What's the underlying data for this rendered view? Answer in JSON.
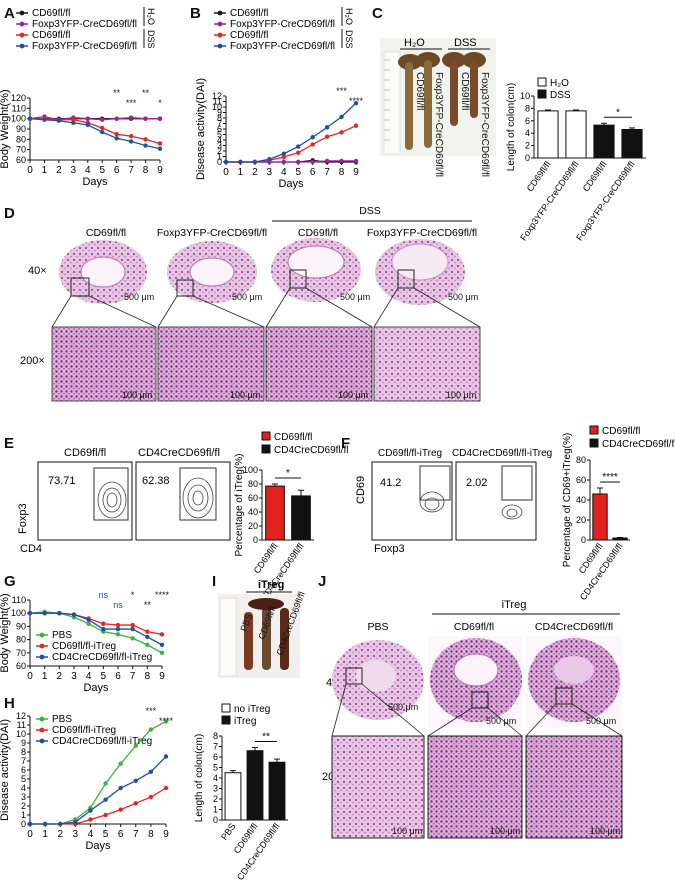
{
  "colors": {
    "black": "#1a1a1a",
    "purple": "#a020a0",
    "red": "#e8251f",
    "blue": "#1f4fa8",
    "green": "#3cb43c",
    "tissue": "#e7c3e3",
    "tissue_dark": "#b65fae",
    "bar_white": "#ffffff",
    "bar_black": "#111111",
    "bar_red": "#e0211d"
  },
  "panel_letters": [
    "A",
    "B",
    "C",
    "D",
    "E",
    "F",
    "G",
    "H",
    "I",
    "J"
  ],
  "chart_data": [
    {
      "id": "A",
      "type": "line",
      "xlabel": "Days",
      "ylabel": "Body Weight(%)",
      "ylim": [
        60,
        120
      ],
      "yticks": [
        60,
        70,
        80,
        90,
        100,
        110,
        120
      ],
      "x": [
        0,
        1,
        2,
        3,
        4,
        5,
        6,
        7,
        8,
        9
      ],
      "legend": [
        "CD69fl/fl",
        "Foxp3YFP-CreCD69fl/fl",
        "CD69fl/fl",
        "Foxp3YFP-CreCD69fl/fl"
      ],
      "group_labels": [
        "H₂O",
        "DSS"
      ],
      "series": [
        {
          "name": "CD69fl/fl",
          "color": "black",
          "values": [
            100,
            100,
            100,
            100,
            100,
            100,
            100,
            100,
            100,
            100
          ]
        },
        {
          "name": "Foxp3YFP-CreCD69fl/fl",
          "color": "purple",
          "values": [
            100,
            102,
            99,
            101,
            100,
            99,
            100,
            101,
            100,
            100
          ]
        },
        {
          "name": "CD69fl/fl",
          "color": "red",
          "values": [
            100,
            100,
            99,
            99,
            96,
            91,
            85,
            83,
            80,
            76
          ]
        },
        {
          "name": "Foxp3YFP-CreCD69fl/fl",
          "color": "blue",
          "values": [
            100,
            99,
            98,
            96,
            94,
            87,
            81,
            78,
            74,
            71
          ]
        }
      ],
      "annotations": [
        "**",
        "***",
        "**",
        "*"
      ]
    },
    {
      "id": "B",
      "type": "line",
      "xlabel": "Days",
      "ylabel": "Disease activity(DAI)",
      "ylim": [
        0,
        12
      ],
      "yticks": [
        0,
        1,
        2,
        3,
        4,
        5,
        6,
        7,
        8,
        9,
        10,
        11,
        12
      ],
      "x": [
        0,
        1,
        2,
        3,
        4,
        5,
        6,
        7,
        8,
        9
      ],
      "legend": [
        "CD69fl/fl",
        "Foxp3YFP-CreCD69fl/fl",
        "CD69fl/fl",
        "Foxp3YFP-CreCD69fl/fl"
      ],
      "group_labels": [
        "H₂O",
        "DSS"
      ],
      "series": [
        {
          "name": "CD69fl/fl",
          "color": "black",
          "values": [
            0,
            0,
            0,
            0,
            0,
            0,
            0.3,
            0,
            0,
            0
          ]
        },
        {
          "name": "Foxp3YFP-CreCD69fl/fl",
          "color": "purple",
          "values": [
            0,
            0,
            0,
            0,
            0,
            0,
            0,
            0.2,
            0.2,
            0.2
          ]
        },
        {
          "name": "CD69fl/fl",
          "color": "red",
          "values": [
            0,
            0,
            0,
            0.3,
            0.9,
            1.7,
            3.2,
            4.6,
            5.4,
            6.6
          ]
        },
        {
          "name": "Foxp3YFP-CreCD69fl/fl",
          "color": "blue",
          "values": [
            0,
            0,
            0,
            0.5,
            1.5,
            2.8,
            4.5,
            6.3,
            8.2,
            10.7
          ]
        }
      ],
      "annotations": [
        "***",
        "****"
      ]
    },
    {
      "id": "C",
      "type": "bar",
      "ylabel": "Length of colon(cm)",
      "ylim": [
        0,
        10
      ],
      "yticks": [
        0,
        2,
        4,
        6,
        8,
        10
      ],
      "categories": [
        "CD69fl/fl",
        "Foxp3YFP-CreCD69fl/fl",
        "CD69fl/fl",
        "Foxp3YFP-CreCD69fl/fl"
      ],
      "legend": [
        "H₂O",
        "DSS"
      ],
      "values": [
        7.6,
        7.6,
        5.3,
        4.6
      ],
      "errors": [
        0.15,
        0.15,
        0.3,
        0.25
      ],
      "fills": [
        "white",
        "white",
        "black",
        "black"
      ],
      "annotations": [
        "*"
      ]
    },
    {
      "id": "E",
      "type": "bar",
      "ylabel": "Percentage of iTreg(%)",
      "ylim": [
        0,
        100
      ],
      "yticks": [
        0,
        20,
        40,
        60,
        80,
        100
      ],
      "categories": [
        "CD69fl/fl",
        "CD4CreCD69fl/fl"
      ],
      "legend": [
        "CD69fl/fl",
        "CD4CreCD69fl/fl"
      ],
      "values": [
        77,
        63
      ],
      "errors": [
        3,
        8
      ],
      "fills": [
        "red",
        "black"
      ],
      "annotations": [
        "*"
      ]
    },
    {
      "id": "F",
      "type": "bar",
      "ylabel": "Percentage of CD69+iTreg(%)",
      "ylim": [
        0,
        80
      ],
      "yticks": [
        0,
        20,
        40,
        60,
        80
      ],
      "categories": [
        "CD69fl/fl",
        "CD4CreCD69fl/fl"
      ],
      "legend": [
        "CD69fl/fl",
        "CD4CreCD69fl/fl"
      ],
      "values": [
        46,
        2
      ],
      "errors": [
        6,
        0.5
      ],
      "fills": [
        "red",
        "black"
      ],
      "annotations": [
        "****"
      ]
    },
    {
      "id": "G",
      "type": "line",
      "xlabel": "Days",
      "ylabel": "Body Weight(%)",
      "ylim": [
        60,
        110
      ],
      "yticks": [
        60,
        70,
        80,
        90,
        100,
        110
      ],
      "x": [
        0,
        1,
        2,
        3,
        4,
        5,
        6,
        7,
        8,
        9
      ],
      "legend": [
        "PBS",
        "CD69fl/fl-iTreg",
        "CD4CreCD69fl/fl-iTreg"
      ],
      "series": [
        {
          "name": "PBS",
          "color": "green",
          "values": [
            100,
            101,
            100,
            97,
            92,
            86,
            84,
            81,
            76,
            70
          ]
        },
        {
          "name": "CD69fl/fl-iTreg",
          "color": "red",
          "values": [
            100,
            100,
            100,
            99,
            96,
            92,
            91,
            91,
            86,
            84
          ]
        },
        {
          "name": "CD4CreCD69fl/fl-iTreg",
          "color": "blue",
          "values": [
            100,
            100,
            100,
            99,
            95,
            88,
            88,
            88,
            82,
            76
          ]
        }
      ],
      "annotations": [
        "ns",
        "ns",
        "*",
        "**",
        "****"
      ]
    },
    {
      "id": "H",
      "type": "line",
      "xlabel": "Days",
      "ylabel": "Disease activity(DAI)",
      "ylim": [
        0,
        12
      ],
      "yticks": [
        0,
        1,
        2,
        3,
        4,
        5,
        6,
        7,
        8,
        9,
        10,
        11,
        12
      ],
      "x": [
        0,
        1,
        2,
        3,
        4,
        5,
        6,
        7,
        8,
        9
      ],
      "legend": [
        "PBS",
        "CD69fl/fl-iTreg",
        "CD4CreCD69fl/fl-iTreg"
      ],
      "series": [
        {
          "name": "PBS",
          "color": "green",
          "values": [
            0,
            0,
            0,
            0.5,
            1.8,
            4.5,
            6.7,
            8.7,
            10.5,
            11.4
          ]
        },
        {
          "name": "CD69fl/fl-iTreg",
          "color": "red",
          "values": [
            0,
            0,
            0,
            0,
            0.5,
            1.0,
            1.6,
            2.3,
            3.0,
            4.0
          ]
        },
        {
          "name": "CD4CreCD69fl/fl-iTreg",
          "color": "blue",
          "values": [
            0,
            0,
            0,
            0.2,
            1.5,
            2.7,
            4.0,
            4.8,
            5.8,
            7.5
          ]
        }
      ],
      "annotations": [
        "***",
        "****"
      ]
    },
    {
      "id": "I",
      "type": "bar",
      "ylabel": "Length of colon(cm)",
      "ylim": [
        0,
        8
      ],
      "yticks": [
        0,
        1,
        2,
        3,
        4,
        5,
        6,
        7,
        8
      ],
      "categories": [
        "PBS",
        "CD69fl/fl",
        "CD4CreCD69fl/fl"
      ],
      "legend": [
        "no iTreg",
        "iTreg"
      ],
      "values": [
        4.5,
        6.6,
        5.5
      ],
      "errors": [
        0.2,
        0.3,
        0.3
      ],
      "fills": [
        "white",
        "black",
        "black"
      ],
      "annotations": [
        "**"
      ]
    }
  ],
  "panel_c": {
    "labels": [
      "H₂O",
      "DSS"
    ],
    "colon_labels": [
      "CD69fl/fl",
      "Foxp3YFP-CreCD69fl/fl",
      "CD69fl/fl",
      "Foxp3YFP-CreCD69fl/fl"
    ]
  },
  "panel_d": {
    "columns": [
      "CD69fl/fl",
      "Foxp3YFP-CreCD69fl/fl",
      "CD69fl/fl",
      "Foxp3YFP-CreCD69fl/fl"
    ],
    "group": "DSS",
    "row_labels": [
      "40×",
      "200×"
    ],
    "scale_top": "500 μm",
    "scale_bottom": "100 μm"
  },
  "panel_e": {
    "titles": [
      "CD69fl/fl",
      "CD4CreCD69fl/fl"
    ],
    "values": [
      "73.71",
      "62.38"
    ],
    "xaxis": "CD4",
    "yaxis": "Foxp3"
  },
  "panel_f": {
    "titles": [
      "CD69fl/fl-iTreg",
      "CD4CreCD69fl/fl-iTreg"
    ],
    "values": [
      "41.2",
      "2.02"
    ],
    "xaxis": "Foxp3",
    "yaxis": "CD69"
  },
  "panel_i_photo": {
    "title": "iTreg",
    "labels": [
      "PBS",
      "CD69fl/fl",
      "CD4CreCD69fl/fl"
    ]
  },
  "panel_j": {
    "columns": [
      "PBS",
      "CD69fl/fl",
      "CD4CreCD69fl/fl"
    ],
    "group": "iTreg",
    "row_labels": [
      "40×",
      "200×"
    ],
    "scale_top": "500 μm",
    "scale_bottom": "100 μm"
  }
}
